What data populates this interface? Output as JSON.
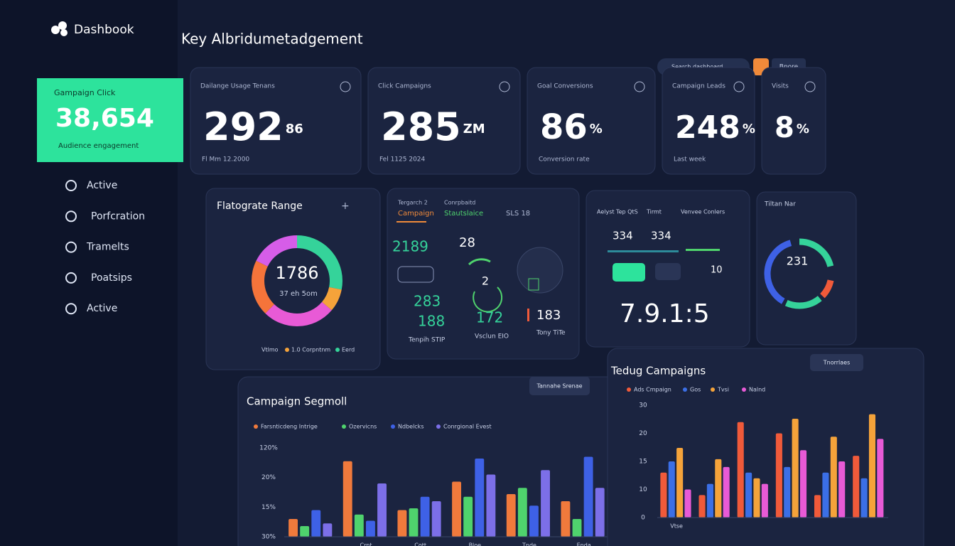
{
  "sidebar": {
    "logo": "Dashbook",
    "highlight": {
      "label": "Gampaign Click",
      "value": "38,654",
      "caption": "Audience engagement"
    },
    "nav": [
      "Active",
      "Porfcration",
      "Tramelts",
      "Poatsips",
      "Active"
    ]
  },
  "header": {
    "title": "Key Albridumetadgement",
    "search": "Search dashboard",
    "button": "Bnore"
  },
  "kpis": [
    {
      "label": "Dailange Usage Tenans",
      "value": "292",
      "unit": "86",
      "caption": "Fl Mm 12.2000"
    },
    {
      "label": "Click Campaigns",
      "value": "285",
      "unit": "ZM",
      "caption": "Fel 1125 2024"
    },
    {
      "label": "Goal Conversions",
      "value": "86",
      "unit": "%",
      "caption": "Conversion rate"
    },
    {
      "label": "Campaign Leads",
      "value": "248",
      "unit": "%",
      "caption": "Last week"
    },
    {
      "label": "Visits",
      "value": "8",
      "unit": "%"
    }
  ],
  "donut_panel": {
    "title": "Flatograte Range",
    "center": "1786",
    "sub": "37 eh 5om",
    "legend": [
      "Vtlmo",
      "1.0 Corpntnm",
      "Eerd"
    ]
  },
  "metrics_panel": {
    "tabs": [
      {
        "top": "Tergarch 2",
        "label": "Campaign"
      },
      {
        "top": "Conrpbaitd",
        "label": "Stautslaice"
      },
      {
        "label": "SLS 18"
      }
    ],
    "values": [
      "2189",
      "28",
      "2",
      "283",
      "188",
      "172",
      "183"
    ],
    "captions": [
      "Tenpih STIP",
      "Vsclun EIO",
      "Tony TiTe"
    ]
  },
  "stats_panel": {
    "headers": [
      "Aelyst Tep QtS",
      "Tirmt",
      "Venvee Conlers"
    ],
    "values": [
      "334",
      "334",
      "10"
    ],
    "big": "7.9.1:5"
  },
  "ring_panel": {
    "title": "Tiltan Nar",
    "center": "231"
  },
  "chart_data": [
    {
      "type": "bar",
      "title": "Campaign Segmoll",
      "button": "Tannahe Srenae",
      "categories": [
        null,
        "Crnt",
        "Cott",
        "Bloe",
        "Tnde",
        "Enda"
      ],
      "y_labels": [
        "120%",
        "20%",
        "15%",
        "30%"
      ],
      "ylim": [
        0,
        100
      ],
      "series": [
        {
          "name": "Farsnticdeng Intrige",
          "color": "#f07a3c",
          "values": [
            20,
            85,
            30,
            62,
            48,
            40
          ]
        },
        {
          "name": "Ozervicns",
          "color": "#4fd36d",
          "values": [
            12,
            25,
            32,
            45,
            55,
            20
          ]
        },
        {
          "name": "Ndbelcks",
          "color": "#3e61e6",
          "values": [
            30,
            18,
            45,
            88,
            35,
            90
          ]
        },
        {
          "name": "Conrgional Evest",
          "color": "#7c6fe8",
          "values": [
            15,
            60,
            40,
            70,
            75,
            55
          ]
        }
      ]
    },
    {
      "type": "bar",
      "title": "Tedug Campaigns",
      "button": "Tnorrlaes",
      "categories": [
        "Vtse",
        null,
        null,
        null,
        null,
        null
      ],
      "y_labels": [
        "30",
        "20",
        "15",
        "10",
        "0"
      ],
      "ylim": [
        0,
        100
      ],
      "series": [
        {
          "name": "Ads Cmpaign",
          "color": "#f05a3a",
          "values": [
            40,
            20,
            85,
            75,
            20,
            55
          ]
        },
        {
          "name": "Gos",
          "color": "#3b6fe6",
          "values": [
            50,
            30,
            40,
            45,
            40,
            35
          ]
        },
        {
          "name": "Tvsi",
          "color": "#f5a33a",
          "values": [
            62,
            52,
            35,
            88,
            72,
            92
          ]
        },
        {
          "name": "Nalnd",
          "color": "#e85ad6",
          "values": [
            25,
            45,
            30,
            60,
            50,
            70
          ]
        }
      ]
    }
  ]
}
